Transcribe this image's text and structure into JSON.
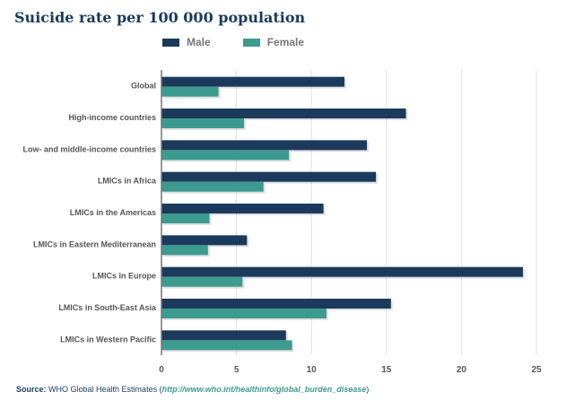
{
  "chart_data": {
    "type": "bar",
    "orientation": "horizontal",
    "title": "Suicide rate per 100 000 population",
    "categories": [
      "Global",
      "High-income countries",
      "Low- and middle-income countries",
      "LMICs in Africa",
      "LMICs in the Americas",
      "LMICs in Eastern Mediterranean",
      "LMICs in Europe",
      "LMICs in South-East Asia",
      "LMICs in Western Pacific"
    ],
    "series": [
      {
        "name": "Male",
        "color": "#1b3a5c",
        "values": [
          12.2,
          16.3,
          13.7,
          14.3,
          10.8,
          5.7,
          24.1,
          15.3,
          8.3
        ]
      },
      {
        "name": "Female",
        "color": "#3d9a8e",
        "values": [
          3.8,
          5.5,
          8.5,
          6.8,
          3.2,
          3.1,
          5.4,
          11.0,
          8.7
        ]
      }
    ],
    "xlim": [
      0,
      25
    ],
    "xticks": [
      0,
      5,
      10,
      15,
      20,
      25
    ],
    "grid": true,
    "legend_position": "top-left"
  },
  "source": {
    "label": "Source:",
    "text": "WHO Global Health Estimates (",
    "url": "http://www.who.int/healthinfo/global_burden_disease",
    "close": ")"
  }
}
